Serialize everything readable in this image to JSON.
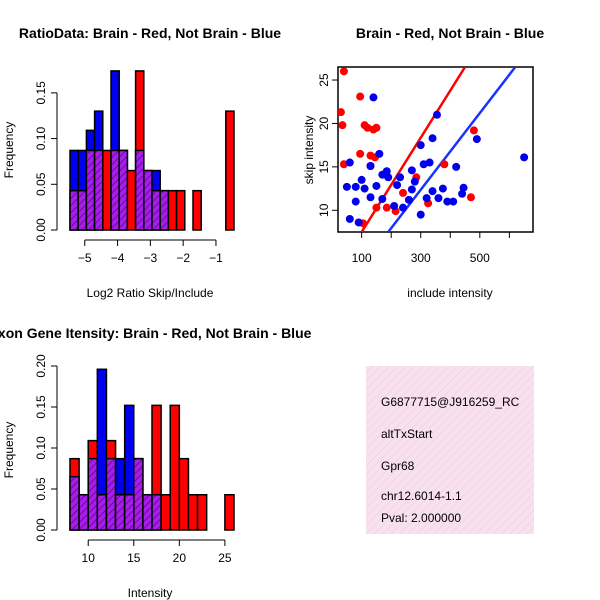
{
  "colors": {
    "red": "#ff0000",
    "blue": "#0000ee",
    "purple": "#a020f0",
    "hatch": "#880088",
    "pink_bg": "#f8e1ef",
    "pval": "#cc0000",
    "line_red": "#ff0000",
    "line_blue": "#1a33ff"
  },
  "info_box": {
    "probe": "G6877715@J916259_RC",
    "event": "altTxStart",
    "gene": "Gpr68",
    "location": "chr12.6014-1.1",
    "pval": "Pval: 2.000000"
  },
  "chart_data": [
    {
      "id": "ratio_hist",
      "type": "bar",
      "title": "RatioData: Brain - Red, Not Brain - Blue",
      "xlabel": "Log2 Ratio Skip/Include",
      "ylabel": "Frequency",
      "xlim": [
        -5.45,
        -0.45
      ],
      "ylim": [
        0,
        0.175
      ],
      "x_ticks": [
        -5,
        -4,
        -3,
        -2,
        -1
      ],
      "x_tick_labels": [
        "−5",
        "−4",
        "−3",
        "−2",
        "−1"
      ],
      "y_ticks": [
        0.0,
        0.05,
        0.1,
        0.15
      ],
      "y_tick_labels": [
        "0.00",
        "0.05",
        "0.10",
        "0.15"
      ],
      "bin_start": -5.45,
      "bin_width": 0.25,
      "series": [
        {
          "name": "Not Brain",
          "color": "blue",
          "values": [
            0.087,
            0.087,
            0.109,
            0.13,
            0,
            0.174,
            0.087,
            0,
            0.087,
            0.065,
            0.065,
            0.043,
            0,
            0,
            0,
            0,
            0,
            0,
            0,
            0
          ]
        },
        {
          "name": "Brain",
          "color": "red",
          "values": [
            0.043,
            0.043,
            0.087,
            0.087,
            0.087,
            0.087,
            0.087,
            0.065,
            0.174,
            0.065,
            0.043,
            0.043,
            0.043,
            0.043,
            0,
            0.043,
            0,
            0,
            0,
            0.13
          ]
        }
      ]
    },
    {
      "id": "scatter",
      "type": "scatter",
      "title": "Brain - Red, Not Brain - Blue",
      "xlabel": "include intensity",
      "ylabel": "skip intensity",
      "xlim": [
        20,
        680
      ],
      "ylim": [
        7.5,
        26.5
      ],
      "x_ticks": [
        100,
        200,
        300,
        400,
        500,
        600
      ],
      "x_tick_labels": [
        "100",
        "",
        "300",
        "",
        "500",
        ""
      ],
      "y_ticks": [
        10,
        15,
        20,
        25
      ],
      "y_tick_labels": [
        "10",
        "15",
        "20",
        "25"
      ],
      "red_points": [
        [
          40,
          26
        ],
        [
          30,
          21.3
        ],
        [
          35,
          19.8
        ],
        [
          40,
          15.3
        ],
        [
          95,
          23.1
        ],
        [
          110,
          19.8
        ],
        [
          120,
          19.5
        ],
        [
          140,
          19.3
        ],
        [
          150,
          19.5
        ],
        [
          95,
          16.5
        ],
        [
          130,
          15.1
        ],
        [
          130,
          16.3
        ],
        [
          105,
          8.5
        ],
        [
          150,
          10.3
        ],
        [
          185,
          10.3
        ],
        [
          215,
          9.9
        ],
        [
          240,
          12
        ],
        [
          285,
          13.8
        ],
        [
          325,
          10.8
        ],
        [
          380,
          15.3
        ],
        [
          480,
          19.2
        ],
        [
          470,
          11.5
        ],
        [
          145,
          16.1
        ]
      ],
      "blue_points": [
        [
          140,
          23
        ],
        [
          60,
          15.5
        ],
        [
          50,
          12.7
        ],
        [
          80,
          12.7
        ],
        [
          100,
          13.5
        ],
        [
          110,
          12.5
        ],
        [
          130,
          15.1
        ],
        [
          160,
          16.5
        ],
        [
          150,
          12.8
        ],
        [
          170,
          14.1
        ],
        [
          185,
          14.5
        ],
        [
          190,
          13.8
        ],
        [
          210,
          10.5
        ],
        [
          230,
          13.8
        ],
        [
          240,
          10.3
        ],
        [
          260,
          11.2
        ],
        [
          270,
          12.4
        ],
        [
          280,
          13.3
        ],
        [
          300,
          17.5
        ],
        [
          310,
          15.3
        ],
        [
          330,
          15.5
        ],
        [
          340,
          12.2
        ],
        [
          355,
          21
        ],
        [
          360,
          11.4
        ],
        [
          375,
          12.5
        ],
        [
          390,
          11
        ],
        [
          420,
          15
        ],
        [
          445,
          12.6
        ],
        [
          60,
          9
        ],
        [
          90,
          8.6
        ],
        [
          80,
          11
        ],
        [
          130,
          11.5
        ],
        [
          170,
          11.3
        ],
        [
          220,
          12.9
        ],
        [
          300,
          9.5
        ],
        [
          320,
          11.4
        ],
        [
          340,
          18.3
        ],
        [
          410,
          11
        ],
        [
          440,
          11.9
        ],
        [
          490,
          18.2
        ],
        [
          650,
          16.1
        ],
        [
          270,
          14.6
        ]
      ],
      "lines": [
        {
          "color": "line_red",
          "from": [
            100,
            7.5
          ],
          "to": [
            450,
            26.5
          ]
        },
        {
          "color": "line_blue",
          "from": [
            190,
            7.5
          ],
          "to": [
            620,
            26.5
          ]
        }
      ]
    },
    {
      "id": "intensity_hist",
      "type": "bar",
      "title": "Exon Gene Itensity: Brain - Red, Not Brain - Blue",
      "xlabel": "Intensity",
      "ylabel": "Frequency",
      "xlim": [
        8,
        26
      ],
      "ylim": [
        0,
        0.2
      ],
      "x_ticks": [
        10,
        15,
        20,
        25
      ],
      "x_tick_labels": [
        "10",
        "15",
        "20",
        "25"
      ],
      "y_ticks": [
        0.0,
        0.05,
        0.1,
        0.15,
        0.2
      ],
      "y_tick_labels": [
        "0.00",
        "0.05",
        "0.10",
        "0.15",
        "0.20"
      ],
      "bin_start": 8,
      "bin_width": 1,
      "series": [
        {
          "name": "Not Brain",
          "color": "blue",
          "values": [
            0.065,
            0.043,
            0.087,
            0.196,
            0.087,
            0.087,
            0.152,
            0.087,
            0.043,
            0.043,
            0,
            0,
            0,
            0,
            0,
            0,
            0,
            0
          ]
        },
        {
          "name": "Brain",
          "color": "red",
          "values": [
            0.087,
            0.043,
            0.109,
            0.043,
            0.109,
            0.043,
            0.043,
            0.087,
            0.043,
            0.152,
            0.043,
            0.152,
            0.087,
            0.043,
            0.043,
            0,
            0,
            0.043
          ]
        }
      ]
    }
  ]
}
